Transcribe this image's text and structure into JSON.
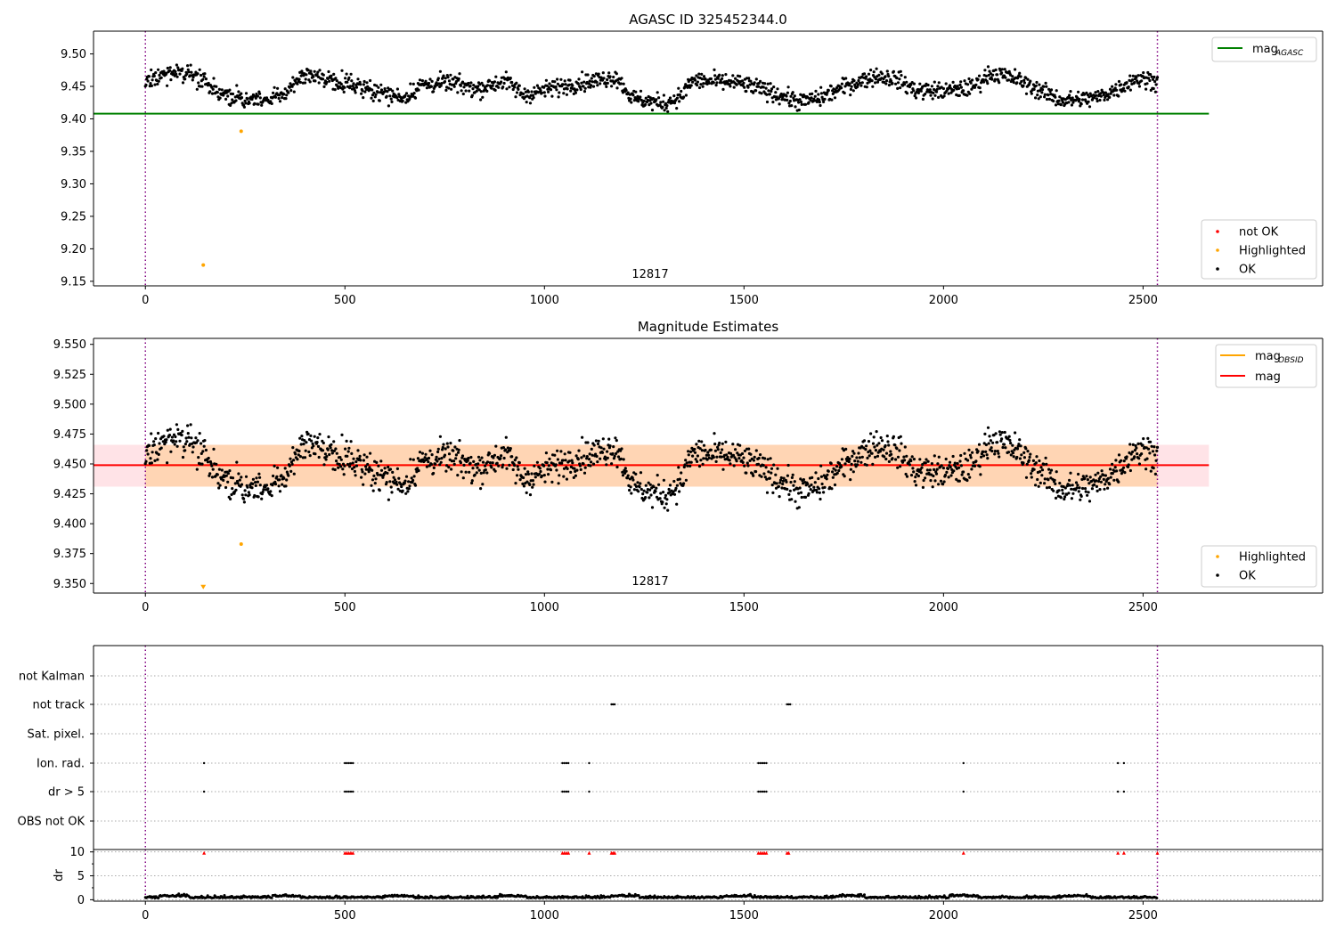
{
  "chart_data": [
    {
      "type": "scatter",
      "title": "AGASC ID 325452344.0",
      "xlabel": "",
      "ylabel": "",
      "xlim": [
        -130,
        2950
      ],
      "ylim": [
        9.143,
        9.535
      ],
      "x_ticks": [
        "0",
        "500",
        "1000",
        "1500",
        "2000",
        "2500"
      ],
      "y_ticks": [
        "9.15",
        "9.20",
        "9.25",
        "9.30",
        "9.35",
        "9.40",
        "9.45",
        "9.50"
      ],
      "obsid_boundaries": [
        0,
        2536
      ],
      "obsid_label": "12817",
      "obsid_label_x": 1265,
      "reference_lines": [
        {
          "name": "mag_AGASC",
          "y": 9.408,
          "x_range": [
            -130,
            2665
          ],
          "color": "#008000"
        }
      ],
      "highlighted_points": [
        {
          "x": 240,
          "y": 9.381
        },
        {
          "x": 145,
          "y": 9.175
        }
      ],
      "ok_series": {
        "x_range": [
          0,
          2536
        ],
        "trend": [
          [
            0,
            9.458
          ],
          [
            40,
            9.468
          ],
          [
            90,
            9.474
          ],
          [
            130,
            9.464
          ],
          [
            165,
            9.447
          ],
          [
            215,
            9.432
          ],
          [
            300,
            9.428
          ],
          [
            350,
            9.438
          ],
          [
            385,
            9.465
          ],
          [
            450,
            9.463
          ],
          [
            530,
            9.452
          ],
          [
            610,
            9.437
          ],
          [
            650,
            9.433
          ],
          [
            690,
            9.452
          ],
          [
            760,
            9.456
          ],
          [
            830,
            9.446
          ],
          [
            870,
            9.453
          ],
          [
            900,
            9.459
          ],
          [
            950,
            9.437
          ],
          [
            1010,
            9.446
          ],
          [
            1080,
            9.455
          ],
          [
            1130,
            9.459
          ],
          [
            1180,
            9.465
          ],
          [
            1220,
            9.432
          ],
          [
            1300,
            9.423
          ],
          [
            1345,
            9.436
          ],
          [
            1370,
            9.459
          ],
          [
            1480,
            9.456
          ],
          [
            1560,
            9.443
          ],
          [
            1640,
            9.426
          ],
          [
            1690,
            9.432
          ],
          [
            1760,
            9.452
          ],
          [
            1830,
            9.466
          ],
          [
            1880,
            9.462
          ],
          [
            1930,
            9.444
          ],
          [
            2010,
            9.443
          ],
          [
            2070,
            9.448
          ],
          [
            2120,
            9.471
          ],
          [
            2180,
            9.462
          ],
          [
            2240,
            9.444
          ],
          [
            2300,
            9.428
          ],
          [
            2380,
            9.432
          ],
          [
            2440,
            9.447
          ],
          [
            2480,
            9.462
          ],
          [
            2536,
            9.459
          ]
        ],
        "spread": 0.012
      },
      "legend_lines": [
        {
          "label_main": "mag",
          "label_sub": "AGASC",
          "color": "#008000"
        }
      ],
      "legend_markers": [
        {
          "label": "not OK",
          "color": "#ff0000"
        },
        {
          "label": "Highlighted",
          "color": "#ffa500"
        },
        {
          "label": "OK",
          "color": "#000000"
        }
      ]
    },
    {
      "type": "scatter",
      "title": "Magnitude Estimates",
      "xlabel": "",
      "ylabel": "",
      "xlim": [
        -130,
        2950
      ],
      "ylim": [
        9.342,
        9.555
      ],
      "x_ticks": [
        "0",
        "500",
        "1000",
        "1500",
        "2000",
        "2500"
      ],
      "y_ticks": [
        "9.350",
        "9.375",
        "9.400",
        "9.425",
        "9.450",
        "9.475",
        "9.500",
        "9.525",
        "9.550"
      ],
      "obsid_boundaries": [
        0,
        2536
      ],
      "obsid_label": "12817",
      "obsid_label_x": 1265,
      "reference_lines": [
        {
          "name": "mag_OBSID",
          "y": 9.449,
          "x_range": [
            0,
            2536
          ],
          "color": "#ffa500"
        },
        {
          "name": "mag",
          "y": 9.449,
          "x_range": [
            -130,
            2665
          ],
          "color": "#ff0000"
        }
      ],
      "bands": [
        {
          "name": "mag_OBSID band",
          "y_range": [
            9.431,
            9.466
          ],
          "x_range": [
            0,
            2536
          ],
          "color": "#ffa500"
        },
        {
          "name": "mag band",
          "y_range": [
            9.431,
            9.466
          ],
          "x_range": [
            -130,
            2665
          ],
          "color": "#ff6478"
        }
      ],
      "highlighted_points": [
        {
          "x": 240,
          "y": 9.383
        },
        {
          "x": 145,
          "y": 9.347,
          "marker": "triangle-down"
        }
      ],
      "ok_series": {
        "same_as_panel": 0
      },
      "legend_lines": [
        {
          "label_main": "mag",
          "label_sub": "OBSID",
          "color": "#ffa500"
        },
        {
          "label_main": "mag",
          "label_sub": "",
          "color": "#ff0000"
        }
      ],
      "legend_markers": [
        {
          "label": "Highlighted",
          "color": "#ffa500"
        },
        {
          "label": "OK",
          "color": "#000000"
        }
      ]
    },
    {
      "type": "scatter",
      "title": "",
      "xlabel": "",
      "ylabel": "",
      "xlim": [
        -130,
        2950
      ],
      "flag_rows": [
        "not Kalman",
        "not track",
        "Sat. pixel.",
        "Ion. rad.",
        "dr > 5",
        "OBS not OK"
      ],
      "flag_points": {
        "not track": [
          1168,
          1172,
          1176,
          1608,
          1612,
          1616
        ],
        "Ion. rad.": [
          147,
          500,
          505,
          510,
          515,
          520,
          1045,
          1050,
          1055,
          1060,
          1112,
          1536,
          1541,
          1546,
          1551,
          1556,
          2050,
          2437,
          2452
        ],
        "dr > 5": [
          147,
          500,
          505,
          510,
          515,
          520,
          1045,
          1050,
          1055,
          1060,
          1112,
          1536,
          1541,
          1546,
          1551,
          1556,
          2050,
          2437,
          2452
        ]
      },
      "flag_point_color": "#000000"
    },
    {
      "type": "scatter",
      "title": "",
      "xlabel": "",
      "ylabel": "dr",
      "xlim": [
        -130,
        2950
      ],
      "ylim": [
        -0.3,
        10.5
      ],
      "y_ticks": [
        "0",
        "5",
        "10"
      ],
      "clipped_markers_at_10": [
        147,
        500,
        505,
        510,
        515,
        520,
        1045,
        1050,
        1055,
        1060,
        1112,
        1168,
        1172,
        1176,
        1536,
        1541,
        1546,
        1551,
        1556,
        1608,
        1612,
        2050,
        2437,
        2452,
        2536
      ],
      "clipped_marker_color": "#ff0000",
      "dr_series": {
        "x_range": [
          0,
          2536
        ],
        "base": 0.35,
        "spread": 0.35,
        "color": "#000000"
      }
    }
  ]
}
